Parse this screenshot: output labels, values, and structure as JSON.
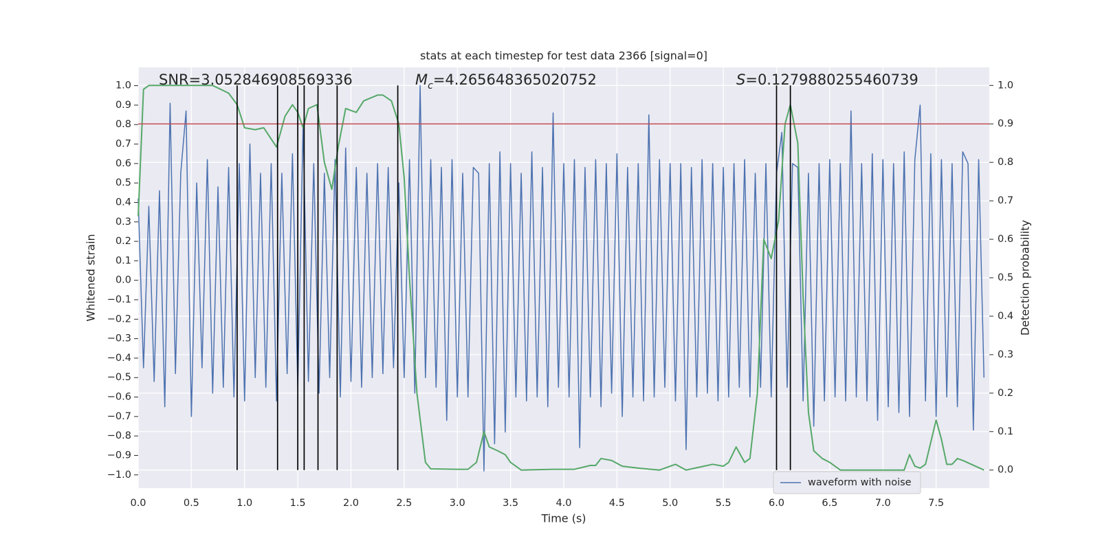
{
  "chart_data": {
    "type": "line",
    "title": "stats at each timestep for test data 2366 [signal=0]",
    "x_label": "Time (s)",
    "y_label": "Whitened strain",
    "y2_label": "Detection probability",
    "xlim": [
      0,
      8
    ],
    "ylim": [
      -1.068,
      1.094
    ],
    "y2lim": [
      -0.047,
      1.047
    ],
    "xticks": [
      {
        "value": 0,
        "label": "0.0"
      },
      0.5,
      {
        "value": 1,
        "label": "1.0"
      },
      1.5,
      {
        "value": 2,
        "label": "2.0"
      },
      2.5,
      {
        "value": 3,
        "label": "3.0"
      },
      3.5,
      {
        "value": 4,
        "label": "4.0"
      },
      4.5,
      {
        "value": 5,
        "label": "5.0"
      },
      5.5,
      {
        "value": 6,
        "label": "6.0"
      },
      6.5,
      {
        "value": 7,
        "label": "7.0"
      },
      7.5
    ],
    "yticks": [
      {
        "value": 1,
        "label": "1.0"
      },
      0.9,
      0.8,
      0.7,
      0.6,
      0.5,
      0.4,
      0.3,
      0.2,
      0.1,
      {
        "value": 0,
        "label": "0.0"
      },
      {
        "value": -0.1,
        "label": "−0.1"
      },
      {
        "value": -0.2,
        "label": "−0.2"
      },
      {
        "value": -0.3,
        "label": "−0.3"
      },
      {
        "value": -0.4,
        "label": "−0.4"
      },
      {
        "value": -0.5,
        "label": "−0.5"
      },
      {
        "value": -0.6,
        "label": "−0.6"
      },
      {
        "value": -0.7,
        "label": "−0.7"
      },
      {
        "value": -0.8,
        "label": "−0.8"
      },
      {
        "value": -0.9,
        "label": "−0.9"
      },
      {
        "value": -1,
        "label": "−1.0"
      }
    ],
    "y2ticks": [
      {
        "value": 0,
        "label": "0.0"
      },
      0.1,
      0.2,
      0.3,
      0.4,
      0.5,
      0.6,
      0.7,
      0.8,
      0.9,
      {
        "value": 1,
        "label": "1.0"
      }
    ],
    "grid": true,
    "legend": "lower right",
    "annotations": [
      {
        "text": "SNR=3.052846908569336"
      },
      {
        "symbol": "M",
        "subscript": "c",
        "text": "=4.265648365020752"
      },
      {
        "symbol": "S",
        "text": "=0.1279880255460739"
      }
    ],
    "series": [
      {
        "name": "waveform with noise",
        "color": "#4c72b0",
        "axis": "y",
        "x": [
          0,
          0.05,
          0.1,
          0.15,
          0.2,
          0.25,
          0.3,
          0.35,
          0.4,
          0.45,
          0.5,
          0.55,
          0.6,
          0.65,
          0.7,
          0.75,
          0.8,
          0.85,
          0.9,
          0.95,
          1,
          1.05,
          1.1,
          1.15,
          1.2,
          1.25,
          1.3,
          1.35,
          1.4,
          1.45,
          1.5,
          1.55,
          1.6,
          1.65,
          1.7,
          1.75,
          1.8,
          1.85,
          1.9,
          1.95,
          2,
          2.05,
          2.1,
          2.15,
          2.2,
          2.25,
          2.3,
          2.35,
          2.4,
          2.45,
          2.5,
          2.55,
          2.6,
          2.65,
          2.7,
          2.75,
          2.8,
          2.85,
          2.9,
          2.95,
          3,
          3.05,
          3.1,
          3.15,
          3.2,
          3.25,
          3.3,
          3.35,
          3.4,
          3.45,
          3.5,
          3.55,
          3.6,
          3.65,
          3.7,
          3.75,
          3.8,
          3.85,
          3.9,
          3.95,
          4,
          4.05,
          4.1,
          4.15,
          4.2,
          4.25,
          4.3,
          4.35,
          4.4,
          4.45,
          4.5,
          4.55,
          4.6,
          4.65,
          4.7,
          4.75,
          4.8,
          4.85,
          4.9,
          4.95,
          5,
          5.05,
          5.1,
          5.15,
          5.2,
          5.25,
          5.3,
          5.35,
          5.4,
          5.45,
          5.5,
          5.55,
          5.6,
          5.65,
          5.7,
          5.75,
          5.8,
          5.85,
          5.9,
          5.95,
          6,
          6.05,
          6.1,
          6.15,
          6.2,
          6.25,
          6.3,
          6.35,
          6.4,
          6.45,
          6.5,
          6.55,
          6.6,
          6.65,
          6.7,
          6.75,
          6.8,
          6.85,
          6.9,
          6.95,
          7,
          7.05,
          7.1,
          7.15,
          7.2,
          7.25,
          7.3,
          7.35,
          7.4,
          7.45,
          7.5,
          7.55,
          7.6,
          7.65,
          7.7,
          7.75,
          7.8,
          7.85,
          7.9,
          7.95
        ],
        "values": [
          0.42,
          -0.45,
          0.38,
          -0.52,
          0.46,
          -0.65,
          0.91,
          -0.48,
          0.55,
          0.87,
          -0.7,
          0.5,
          -0.45,
          0.62,
          -0.58,
          0.48,
          -0.55,
          0.58,
          -0.6,
          0.6,
          -0.62,
          0.7,
          -0.5,
          0.55,
          -0.55,
          0.6,
          -0.62,
          0.55,
          -0.48,
          0.65,
          -0.55,
          0.8,
          -0.52,
          0.6,
          -0.58,
          0.55,
          -0.5,
          0.62,
          -0.6,
          0.68,
          -0.52,
          0.58,
          -0.55,
          0.55,
          -0.5,
          0.6,
          -0.48,
          0.58,
          -0.45,
          0.5,
          -0.5,
          0.62,
          -0.58,
          1.0,
          -0.5,
          0.62,
          -0.55,
          0.58,
          -0.72,
          0.62,
          -0.6,
          0.55,
          -0.6,
          0.58,
          0.55,
          -0.98,
          0.6,
          -0.84,
          0.66,
          -0.78,
          0.6,
          -0.6,
          0.55,
          -0.62,
          0.66,
          -0.6,
          0.58,
          -0.65,
          0.86,
          -0.55,
          0.6,
          -0.6,
          0.62,
          -0.86,
          0.58,
          -0.6,
          0.62,
          -0.65,
          0.6,
          -0.58,
          0.65,
          -0.7,
          0.58,
          -0.6,
          0.6,
          -0.62,
          0.85,
          -0.6,
          0.62,
          -0.55,
          0.6,
          -0.62,
          0.6,
          -0.87,
          0.58,
          -0.6,
          0.62,
          -0.58,
          0.6,
          -0.62,
          0.58,
          -0.6,
          0.6,
          -0.55,
          0.62,
          -0.6,
          0.55,
          -0.55,
          0.6,
          -0.6,
          0.55,
          0.76,
          -0.55,
          0.6,
          0.58,
          -0.62,
          0.55,
          -0.75,
          0.6,
          -0.62,
          0.62,
          -0.6,
          0.6,
          -0.62,
          0.87,
          -0.6,
          0.6,
          -0.62,
          0.65,
          -0.72,
          0.62,
          -0.65,
          0.6,
          -0.68,
          0.66,
          -0.7,
          0.62,
          0.9,
          -0.62,
          0.65,
          -0.7,
          0.62,
          -0.6,
          0.6,
          -0.65,
          0.66,
          0.6,
          -0.77,
          0.62,
          -0.5
        ]
      },
      {
        "color": "#55a868",
        "axis": "y2",
        "x": [
          0,
          0.05,
          0.1,
          0.3,
          0.5,
          0.7,
          0.85,
          0.93,
          1.0,
          1.1,
          1.18,
          1.3,
          1.38,
          1.45,
          1.5,
          1.55,
          1.6,
          1.68,
          1.75,
          1.82,
          1.88,
          1.95,
          2.05,
          2.12,
          2.25,
          2.3,
          2.38,
          2.45,
          2.5,
          2.55,
          2.62,
          2.7,
          2.75,
          3.0,
          3.1,
          3.18,
          3.25,
          3.3,
          3.38,
          3.45,
          3.5,
          3.6,
          3.9,
          4.1,
          4.25,
          4.3,
          4.35,
          4.45,
          4.55,
          4.7,
          4.9,
          5.05,
          5.15,
          5.4,
          5.5,
          5.55,
          5.62,
          5.7,
          5.75,
          5.82,
          5.88,
          5.95,
          6.02,
          6.08,
          6.13,
          6.2,
          6.25,
          6.3,
          6.35,
          6.43,
          6.5,
          6.6,
          7.0,
          7.2,
          7.25,
          7.3,
          7.35,
          7.4,
          7.5,
          7.55,
          7.6,
          7.65,
          7.7,
          7.75,
          7.95
        ],
        "values": [
          0.66,
          0.99,
          1.0,
          1.0,
          1.0,
          1.0,
          0.98,
          0.95,
          0.89,
          0.885,
          0.89,
          0.84,
          0.92,
          0.95,
          0.93,
          0.89,
          0.94,
          0.95,
          0.8,
          0.73,
          0.84,
          0.94,
          0.93,
          0.96,
          0.975,
          0.975,
          0.96,
          0.9,
          0.76,
          0.5,
          0.2,
          0.02,
          0.003,
          0.002,
          0.002,
          0.02,
          0.1,
          0.06,
          0.05,
          0.04,
          0.02,
          0.0,
          0.002,
          0.002,
          0.012,
          0.012,
          0.03,
          0.025,
          0.01,
          0.005,
          0.0,
          0.015,
          0.0,
          0.015,
          0.01,
          0.02,
          0.06,
          0.02,
          0.03,
          0.2,
          0.6,
          0.55,
          0.65,
          0.9,
          0.95,
          0.85,
          0.45,
          0.15,
          0.05,
          0.03,
          0.02,
          0.0,
          0.0,
          0.0,
          0.04,
          0.01,
          0.005,
          0.015,
          0.13,
          0.08,
          0.015,
          0.015,
          0.03,
          0.025,
          0.0
        ]
      }
    ],
    "threshold": {
      "value": 0.9,
      "axis": "y2",
      "color": "#c44e52"
    },
    "vlines": {
      "x": [
        0.93,
        1.31,
        1.5,
        1.56,
        1.69,
        1.87,
        2.44,
        6.0,
        6.13
      ],
      "ymin": 0,
      "ymax": 1,
      "axis": "y2",
      "color": "#000000"
    }
  }
}
